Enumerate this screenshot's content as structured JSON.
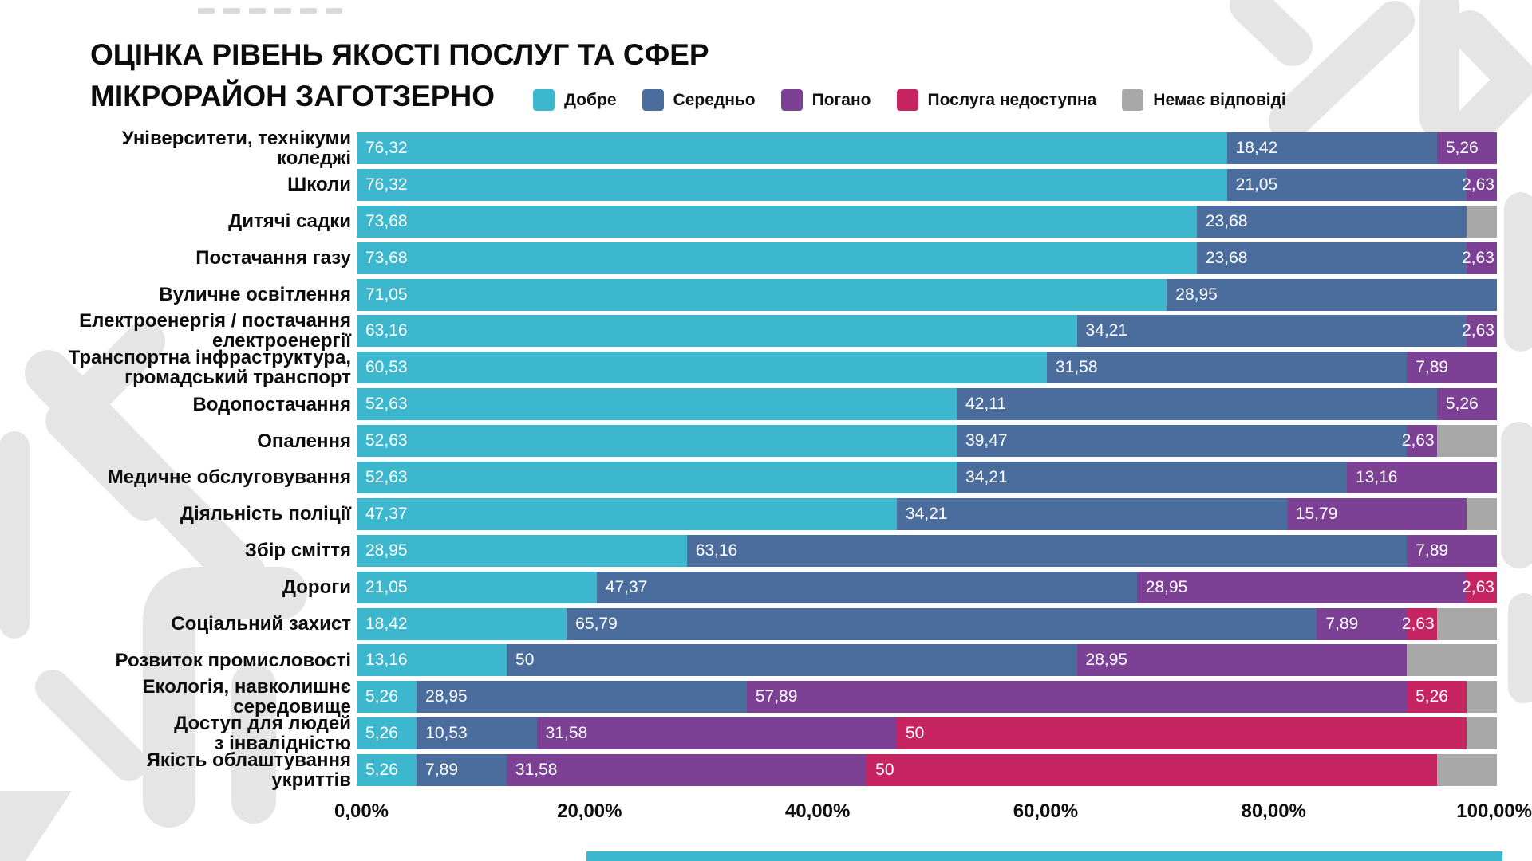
{
  "title": {
    "line1": "ОЦІНКА РІВЕНЬ ЯКОСТІ ПОСЛУГ ТА СФЕР",
    "line2": "МІКРОРАЙОН ЗАГОТЗЕРНО"
  },
  "legend": [
    {
      "key": "good",
      "label": "Добре",
      "color": "#3DB7CE"
    },
    {
      "key": "average",
      "label": "Середньо",
      "color": "#4A6D9D"
    },
    {
      "key": "bad",
      "label": "Погано",
      "color": "#7C4195"
    },
    {
      "key": "unavailable",
      "label": "Послуга недоступна",
      "color": "#C72562"
    },
    {
      "key": "no-answer",
      "label": "Немає відповіді",
      "color": "#A8A8A8"
    }
  ],
  "footer_bar": {
    "color": "#3DB7CE"
  },
  "chart_data": {
    "type": "bar",
    "orientation": "horizontal-stacked",
    "title": "ОЦІНКА РІВЕНЬ ЯКОСТІ ПОСЛУГ ТА СФЕР МІКРОРАЙОН ЗАГОТЗЕРНО",
    "series_names": [
      "Добре",
      "Середньо",
      "Погано",
      "Послуга недоступна",
      "Немає відповіді"
    ],
    "xlim": [
      0,
      100
    ],
    "x_ticks": [
      "0,00%",
      "20,00%",
      "40,00%",
      "60,00%",
      "80,00%",
      "100,00%"
    ],
    "grid": false,
    "legend_position": "top",
    "rows": [
      {
        "category": "Університети, технікуми\nколеджі",
        "values": [
          76.32,
          18.42,
          5.26,
          0,
          0
        ],
        "labels": [
          "76,32",
          "18,42",
          "5,26",
          "",
          ""
        ]
      },
      {
        "category": "Школи",
        "values": [
          76.32,
          21.05,
          2.63,
          0,
          0
        ],
        "labels": [
          "76,32",
          "21,05",
          "2,63",
          "",
          ""
        ]
      },
      {
        "category": "Дитячі садки",
        "values": [
          73.68,
          23.68,
          0,
          0,
          2.64
        ],
        "labels": [
          "73,68",
          "23,68",
          "",
          "",
          ""
        ]
      },
      {
        "category": "Постачання газу",
        "values": [
          73.68,
          23.68,
          2.63,
          0,
          0
        ],
        "labels": [
          "73,68",
          "23,68",
          "2,63",
          "",
          ""
        ]
      },
      {
        "category": "Вуличне освітлення",
        "values": [
          71.05,
          28.95,
          0,
          0,
          0
        ],
        "labels": [
          "71,05",
          "28,95",
          "",
          "",
          ""
        ]
      },
      {
        "category": "Електроенергія / постачання\nелектроенергії",
        "values": [
          63.16,
          34.21,
          2.63,
          0,
          0
        ],
        "labels": [
          "63,16",
          "34,21",
          "2,63",
          "",
          ""
        ]
      },
      {
        "category": "Транспортна інфраструктура,\nгромадський транспорт",
        "values": [
          60.53,
          31.58,
          7.89,
          0,
          0
        ],
        "labels": [
          "60,53",
          "31,58",
          "7,89",
          "",
          ""
        ]
      },
      {
        "category": "Водопостачання",
        "values": [
          52.63,
          42.11,
          5.26,
          0,
          0
        ],
        "labels": [
          "52,63",
          "42,11",
          "5,26",
          "",
          ""
        ]
      },
      {
        "category": "Опалення",
        "values": [
          52.63,
          39.47,
          2.63,
          0,
          5.27
        ],
        "labels": [
          "52,63",
          "39,47",
          "2,63",
          "",
          ""
        ]
      },
      {
        "category": "Медичне обслуговування",
        "values": [
          52.63,
          34.21,
          13.16,
          0,
          0
        ],
        "labels": [
          "52,63",
          "34,21",
          "13,16",
          "",
          ""
        ]
      },
      {
        "category": "Діяльність поліції",
        "values": [
          47.37,
          34.21,
          15.79,
          0,
          2.63
        ],
        "labels": [
          "47,37",
          "34,21",
          "15,79",
          "",
          ""
        ]
      },
      {
        "category": "Збір сміття",
        "values": [
          28.95,
          63.16,
          7.89,
          0,
          0
        ],
        "labels": [
          "28,95",
          "63,16",
          "7,89",
          "",
          ""
        ]
      },
      {
        "category": "Дороги",
        "values": [
          21.05,
          47.37,
          28.95,
          2.63,
          0
        ],
        "labels": [
          "21,05",
          "47,37",
          "28,95",
          "2,63",
          ""
        ]
      },
      {
        "category": "Соціальний захист",
        "values": [
          18.42,
          65.79,
          7.89,
          2.63,
          5.27
        ],
        "labels": [
          "18,42",
          "65,79",
          "7,89",
          "2,63",
          ""
        ]
      },
      {
        "category": "Розвиток промисловості",
        "values": [
          13.16,
          50,
          28.95,
          0,
          7.89
        ],
        "labels": [
          "13,16",
          "50",
          "28,95",
          "",
          ""
        ]
      },
      {
        "category": "Екологія, навколишнє\nсередовище",
        "values": [
          5.26,
          28.95,
          57.89,
          5.26,
          2.64
        ],
        "labels": [
          "5,26",
          "28,95",
          "57,89",
          "5,26",
          ""
        ]
      },
      {
        "category": "Доступ для людей\nз інвалідністю",
        "values": [
          5.26,
          10.53,
          31.58,
          50,
          2.63
        ],
        "labels": [
          "5,26",
          "10,53",
          "31,58",
          "50",
          ""
        ]
      },
      {
        "category": "Якість облаштування\nукриттів",
        "values": [
          5.26,
          7.89,
          31.58,
          50,
          5.27
        ],
        "labels": [
          "5,26",
          "7,89",
          "31,58",
          "50",
          ""
        ]
      }
    ]
  }
}
